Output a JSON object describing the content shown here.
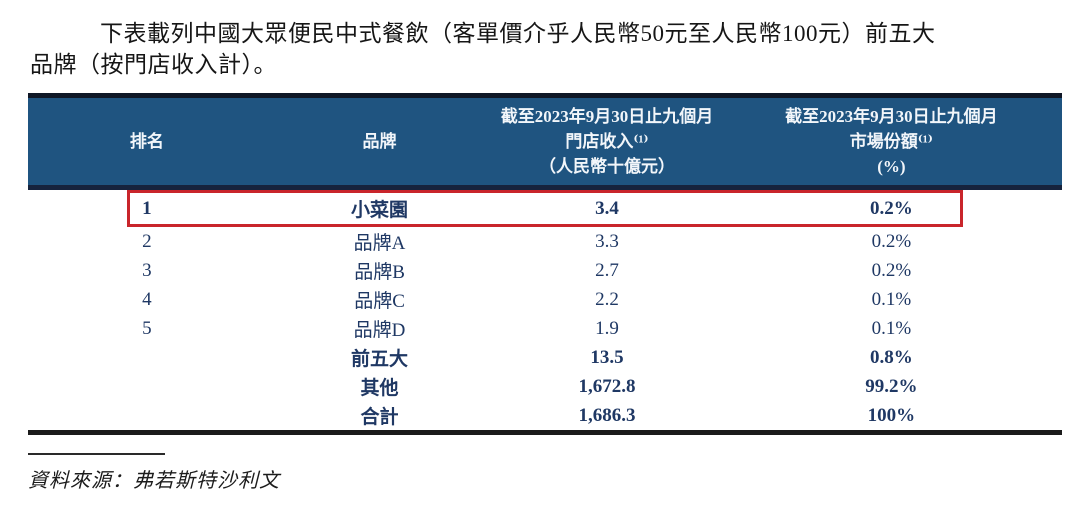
{
  "intro": {
    "line1": "下表載列中國大眾便民中式餐飲（客單價介乎人民幣50元至人民幣100元）前五大",
    "line2": "品牌（按門店收入計）。"
  },
  "table": {
    "header": {
      "col_rank": "排名",
      "col_brand": "品牌",
      "col_revenue": {
        "l1": "截至2023年9月30日止九個月",
        "l2": "門店收入⁽¹⁾",
        "l3": "（人民幣十億元）"
      },
      "col_share": {
        "l1": "截至2023年9月30日止九個月",
        "l2": "市場份額⁽¹⁾",
        "l3": "(%)"
      }
    },
    "rows": [
      {
        "rank": "1",
        "brand": "小菜園",
        "revenue": "3.4",
        "share": "0.2%",
        "bold": true,
        "highlight": true
      },
      {
        "rank": "2",
        "brand": "品牌A",
        "revenue": "3.3",
        "share": "0.2%",
        "bold": false,
        "highlight": false
      },
      {
        "rank": "3",
        "brand": "品牌B",
        "revenue": "2.7",
        "share": "0.2%",
        "bold": false,
        "highlight": false
      },
      {
        "rank": "4",
        "brand": "品牌C",
        "revenue": "2.2",
        "share": "0.1%",
        "bold": false,
        "highlight": false
      },
      {
        "rank": "5",
        "brand": "品牌D",
        "revenue": "1.9",
        "share": "0.1%",
        "bold": false,
        "highlight": false
      },
      {
        "rank": "",
        "brand": "前五大",
        "revenue": "13.5",
        "share": "0.8%",
        "bold": true,
        "highlight": false
      },
      {
        "rank": "",
        "brand": "其他",
        "revenue": "1,672.8",
        "share": "99.2%",
        "bold": true,
        "highlight": false
      },
      {
        "rank": "",
        "brand": "合計",
        "revenue": "1,686.3",
        "share": "100%",
        "bold": true,
        "highlight": false
      }
    ],
    "highlight_color": "#C9252B",
    "header_bg_color": "#1F5480",
    "body_text_color": "#1F3864"
  },
  "source_line": "資料來源：弗若斯特沙利文"
}
